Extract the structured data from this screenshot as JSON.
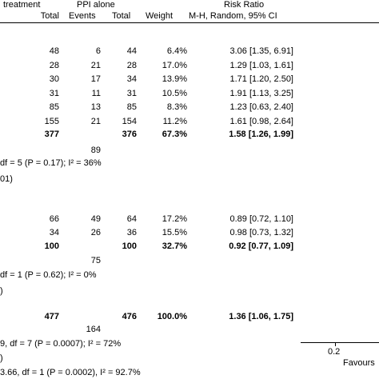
{
  "header": {
    "group1": "treatment",
    "group2": "PPI alone",
    "ratio_title": "Risk Ratio",
    "col_total1": "Total",
    "col_events": "Events",
    "col_total2": "Total",
    "col_weight": "Weight",
    "col_method": "M-H, Random, 95% CI"
  },
  "sub1": {
    "rows": [
      {
        "total1": "48",
        "events": "6",
        "total2": "44",
        "weight": "6.4%",
        "ci": "3.06 [1.35, 6.91]"
      },
      {
        "total1": "28",
        "events": "21",
        "total2": "28",
        "weight": "17.0%",
        "ci": "1.29 [1.03, 1.61]"
      },
      {
        "total1": "30",
        "events": "17",
        "total2": "34",
        "weight": "13.9%",
        "ci": "1.71 [1.20, 2.50]"
      },
      {
        "total1": "31",
        "events": "11",
        "total2": "31",
        "weight": "10.5%",
        "ci": "1.91 [1.13, 3.25]"
      },
      {
        "total1": "85",
        "events": "13",
        "total2": "85",
        "weight": "8.3%",
        "ci": "1.23 [0.63, 2.40]"
      },
      {
        "total1": "155",
        "events": "21",
        "total2": "154",
        "weight": "11.2%",
        "ci": "1.61 [0.98, 2.64]"
      }
    ],
    "subtotal": {
      "total1": "377",
      "total2": "376",
      "weight": "67.3%",
      "ci": "1.58 [1.26, 1.99]"
    },
    "events_total": "89",
    "heterogeneity": "df = 5 (P = 0.17); I² = 36%",
    "overall": "01)"
  },
  "sub2": {
    "rows": [
      {
        "total1": "66",
        "events": "49",
        "total2": "64",
        "weight": "17.2%",
        "ci": "0.89 [0.72, 1.10]"
      },
      {
        "total1": "34",
        "events": "26",
        "total2": "36",
        "weight": "15.5%",
        "ci": "0.98 [0.73, 1.32]"
      }
    ],
    "subtotal": {
      "total1": "100",
      "total2": "100",
      "weight": "32.7%",
      "ci": "0.92 [0.77, 1.09]"
    },
    "events_total": "75",
    "heterogeneity": "df = 1 (P = 0.62); I² = 0%",
    "overall": ")"
  },
  "total": {
    "total1": "477",
    "total2": "476",
    "weight": "100.0%",
    "ci": "1.36 [1.06, 1.75]",
    "events_total": "164",
    "heterogeneity": "9, df = 7 (P = 0.0007); I² = 72%",
    "overall": ")",
    "subgroup_diff": "3.66, df = 1 (P = 0.0002), I² = 92.7%"
  },
  "axis": {
    "tick_label": "0.2",
    "favours": "Favours"
  }
}
